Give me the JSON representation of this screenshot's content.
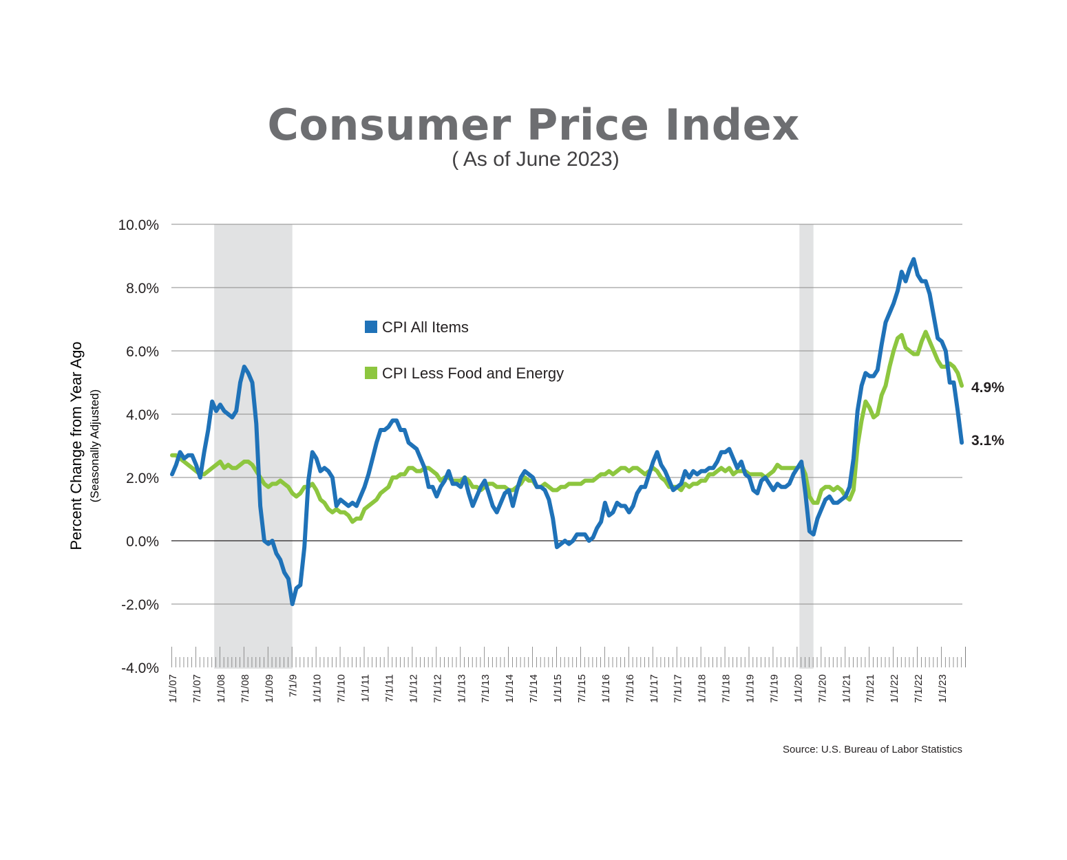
{
  "chart_data": {
    "type": "line",
    "title": "Consumer Price Index",
    "subtitle": "( As of June 2023)",
    "ylabel": "Percent Change from Year Ago",
    "ylabel_sub": "(Seasonally Adjusted)",
    "source": "Source: U.S. Bureau of Labor Statistics",
    "ylim": [
      -4,
      10
    ],
    "yticks": [
      "10.0%",
      "8.0%",
      "6.0%",
      "4.0%",
      "2.0%",
      "0.0%",
      "-2.0%",
      "-4.0%"
    ],
    "x_start": "2007-01",
    "x_end": "2023-06",
    "frequency": "monthly",
    "xtick_labels": [
      "1/1/07",
      "7/1/07",
      "1/1/08",
      "7/1/08",
      "1/1/09",
      "7/1/9",
      "1/1/10",
      "7/1/10",
      "1/1/11",
      "7/1/11",
      "1/1/12",
      "7/1/12",
      "1/1/13",
      "7/1/13",
      "1/1/14",
      "7/1/14",
      "1/1/15",
      "7/1/15",
      "1/1/16",
      "7/1/16",
      "1/1/17",
      "7/1/17",
      "1/1/18",
      "7/1/18",
      "1/1/19",
      "7/1/19",
      "1/1/20",
      "7/1/20",
      "1/1/21",
      "7/1/21",
      "1/1/22",
      "7/1/22",
      "1/1/23"
    ],
    "grid": true,
    "legend_placement": "upper-left-center",
    "recessions": [
      [
        "2007-12",
        "2009-06"
      ],
      [
        "2020-02",
        "2020-04"
      ]
    ],
    "end_labels": {
      "core": "4.9%",
      "all": "3.1%"
    },
    "series": [
      {
        "name": "CPI All Items",
        "color": "#1f72b8",
        "values": [
          2.1,
          2.4,
          2.8,
          2.6,
          2.7,
          2.7,
          2.4,
          2.0,
          2.8,
          3.5,
          4.4,
          4.1,
          4.3,
          4.1,
          4.0,
          3.9,
          4.1,
          5.0,
          5.5,
          5.3,
          5.0,
          3.7,
          1.1,
          0.0,
          -0.1,
          0.0,
          -0.4,
          -0.6,
          -1.0,
          -1.2,
          -2.0,
          -1.5,
          -1.4,
          -0.2,
          1.9,
          2.8,
          2.6,
          2.2,
          2.3,
          2.2,
          2.0,
          1.1,
          1.3,
          1.2,
          1.1,
          1.2,
          1.1,
          1.4,
          1.7,
          2.1,
          2.6,
          3.1,
          3.5,
          3.5,
          3.6,
          3.8,
          3.8,
          3.5,
          3.5,
          3.1,
          3.0,
          2.9,
          2.6,
          2.3,
          1.7,
          1.7,
          1.4,
          1.7,
          1.9,
          2.2,
          1.8,
          1.8,
          1.7,
          2.0,
          1.5,
          1.1,
          1.4,
          1.7,
          1.9,
          1.5,
          1.1,
          0.9,
          1.2,
          1.5,
          1.6,
          1.1,
          1.6,
          2.0,
          2.2,
          2.1,
          2.0,
          1.7,
          1.7,
          1.6,
          1.3,
          0.7,
          -0.2,
          -0.1,
          0.0,
          -0.1,
          0.0,
          0.2,
          0.2,
          0.2,
          0.0,
          0.1,
          0.4,
          0.6,
          1.2,
          0.8,
          0.9,
          1.2,
          1.1,
          1.1,
          0.9,
          1.1,
          1.5,
          1.7,
          1.7,
          2.1,
          2.5,
          2.8,
          2.4,
          2.2,
          1.9,
          1.6,
          1.7,
          1.8,
          2.2,
          2.0,
          2.2,
          2.1,
          2.2,
          2.2,
          2.3,
          2.3,
          2.5,
          2.8,
          2.8,
          2.9,
          2.6,
          2.3,
          2.5,
          2.1,
          2.0,
          1.6,
          1.5,
          1.9,
          2.0,
          1.8,
          1.6,
          1.8,
          1.7,
          1.7,
          1.8,
          2.1,
          2.3,
          2.5,
          1.5,
          0.3,
          0.2,
          0.7,
          1.0,
          1.3,
          1.4,
          1.2,
          1.2,
          1.3,
          1.4,
          1.7,
          2.6,
          4.1,
          4.9,
          5.3,
          5.2,
          5.2,
          5.4,
          6.2,
          6.9,
          7.2,
          7.5,
          7.9,
          8.5,
          8.2,
          8.6,
          8.9,
          8.4,
          8.2,
          8.2,
          7.8,
          7.1,
          6.4,
          6.3,
          6.0,
          5.0,
          5.0,
          4.1,
          3.1
        ]
      },
      {
        "name": "CPI Less Food and Energy",
        "color": "#8dc63f",
        "values": [
          2.7,
          2.7,
          2.6,
          2.5,
          2.4,
          2.3,
          2.2,
          2.1,
          2.1,
          2.2,
          2.3,
          2.4,
          2.5,
          2.3,
          2.4,
          2.3,
          2.3,
          2.4,
          2.5,
          2.5,
          2.4,
          2.2,
          2.0,
          1.8,
          1.7,
          1.8,
          1.8,
          1.9,
          1.8,
          1.7,
          1.5,
          1.4,
          1.5,
          1.7,
          1.7,
          1.8,
          1.6,
          1.3,
          1.2,
          1.0,
          0.9,
          1.0,
          0.9,
          0.9,
          0.8,
          0.6,
          0.7,
          0.7,
          1.0,
          1.1,
          1.2,
          1.3,
          1.5,
          1.6,
          1.7,
          2.0,
          2.0,
          2.1,
          2.1,
          2.3,
          2.3,
          2.2,
          2.2,
          2.3,
          2.3,
          2.2,
          2.1,
          1.9,
          2.0,
          2.0,
          1.9,
          1.9,
          1.9,
          2.0,
          1.9,
          1.7,
          1.7,
          1.6,
          1.7,
          1.8,
          1.8,
          1.7,
          1.7,
          1.7,
          1.6,
          1.6,
          1.7,
          1.8,
          2.0,
          1.9,
          1.9,
          1.7,
          1.7,
          1.8,
          1.7,
          1.6,
          1.6,
          1.7,
          1.7,
          1.8,
          1.8,
          1.8,
          1.8,
          1.9,
          1.9,
          1.9,
          2.0,
          2.1,
          2.1,
          2.2,
          2.1,
          2.2,
          2.3,
          2.3,
          2.2,
          2.3,
          2.3,
          2.2,
          2.1,
          2.2,
          2.3,
          2.2,
          2.0,
          1.9,
          1.7,
          1.7,
          1.7,
          1.6,
          1.8,
          1.7,
          1.8,
          1.8,
          1.9,
          1.9,
          2.1,
          2.1,
          2.2,
          2.3,
          2.2,
          2.3,
          2.1,
          2.2,
          2.2,
          2.2,
          2.1,
          2.1,
          2.1,
          2.1,
          2.0,
          2.1,
          2.2,
          2.4,
          2.3,
          2.3,
          2.3,
          2.3,
          2.3,
          2.4,
          2.1,
          1.4,
          1.2,
          1.2,
          1.6,
          1.7,
          1.7,
          1.6,
          1.7,
          1.6,
          1.4,
          1.3,
          1.6,
          3.0,
          3.8,
          4.4,
          4.2,
          3.9,
          4.0,
          4.6,
          4.9,
          5.5,
          6.0,
          6.4,
          6.5,
          6.1,
          6.0,
          5.9,
          5.9,
          6.3,
          6.6,
          6.3,
          6.0,
          5.7,
          5.5,
          5.5,
          5.6,
          5.5,
          5.3,
          4.9
        ]
      }
    ]
  }
}
